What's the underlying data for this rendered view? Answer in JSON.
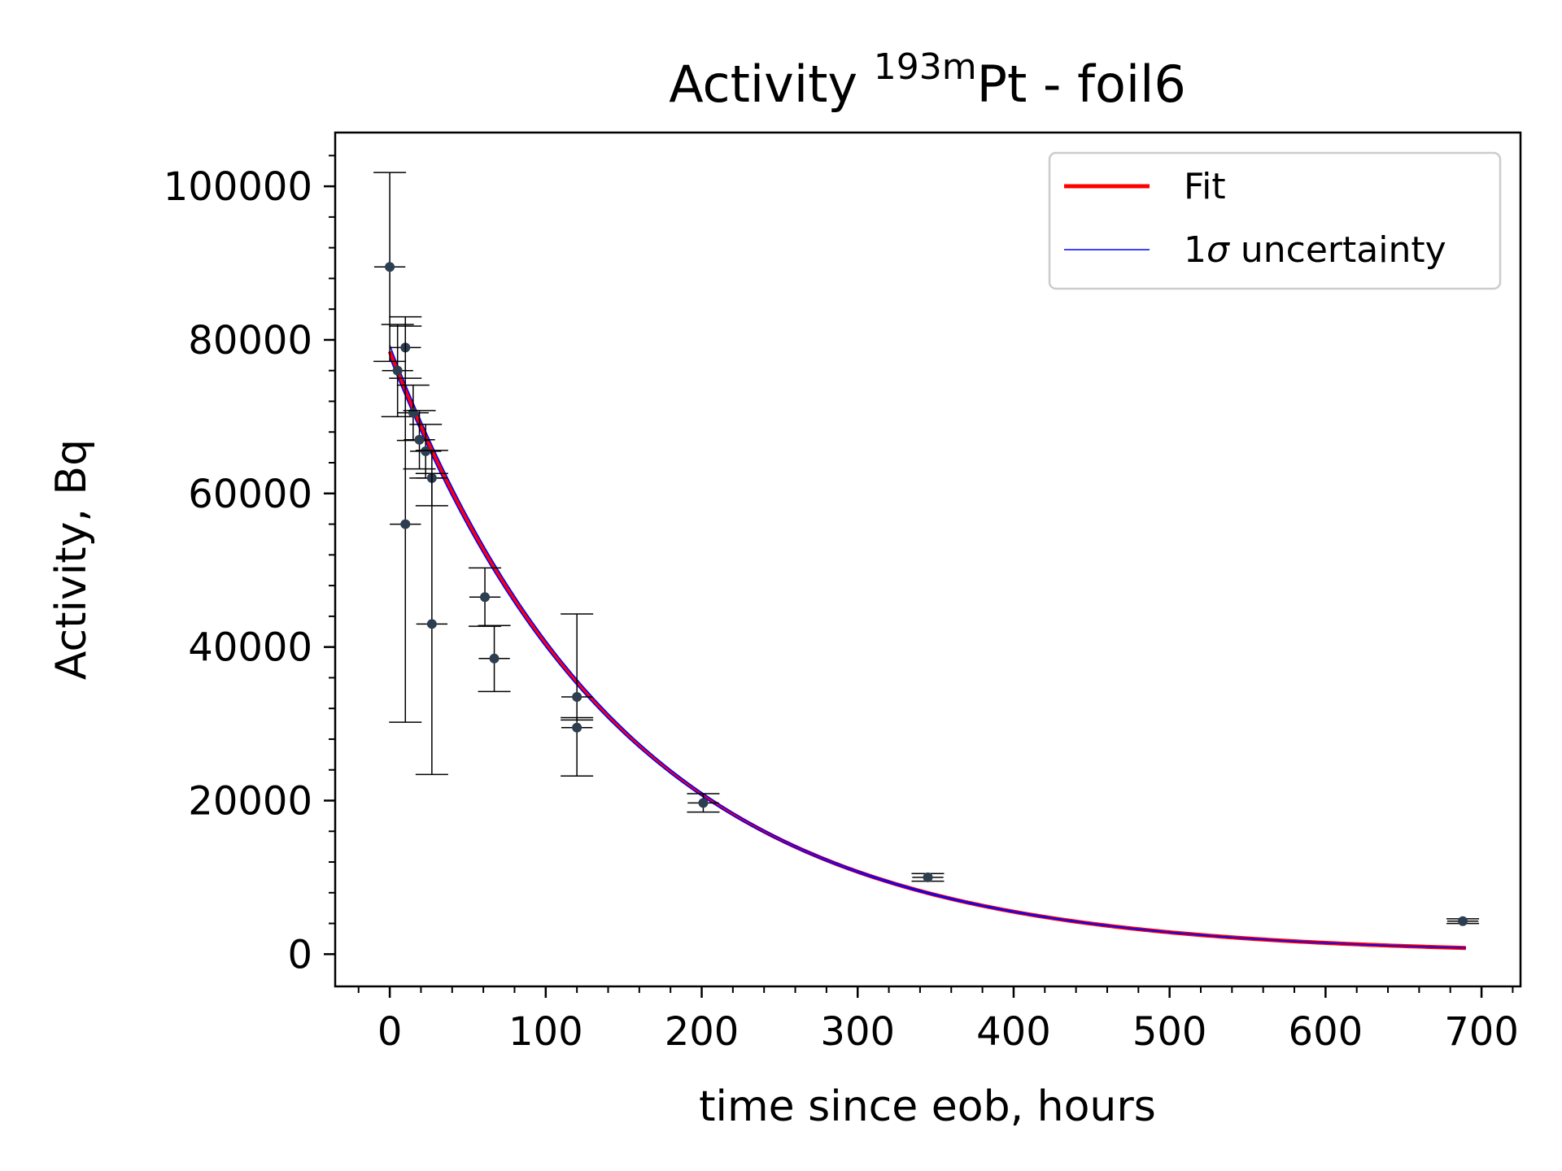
{
  "chart_data": {
    "type": "scatter",
    "title": {
      "prefix": "Activity ",
      "superscript": "193m",
      "suffix": "Pt - foil6"
    },
    "xlabel": "time since eob, hours",
    "ylabel": "Activity, Bq",
    "xlim": [
      -35,
      725
    ],
    "ylim": [
      -4200,
      107000
    ],
    "x_ticks": [
      0,
      100,
      200,
      300,
      400,
      500,
      600,
      700
    ],
    "y_ticks": [
      0,
      20000,
      40000,
      60000,
      80000,
      100000
    ],
    "x_tick_labels": [
      "0",
      "100",
      "200",
      "300",
      "400",
      "500",
      "600",
      "700"
    ],
    "y_tick_labels": [
      "0",
      "20000",
      "40000",
      "60000",
      "80000",
      "100000"
    ],
    "legend": {
      "position": "upper right",
      "entries": [
        {
          "label": "Fit",
          "color": "#ff0000"
        },
        {
          "label_prefix": "1",
          "label_symbol": "σ",
          "label_suffix": " uncertainty",
          "color": "#0000ff"
        }
      ]
    },
    "series": [
      {
        "name": "Fit",
        "kind": "curve",
        "model": "exponential_decay",
        "A0": 78500,
        "half_life_hours": 104.5,
        "x_range": [
          0,
          690
        ],
        "color": "#ff0000"
      },
      {
        "name": "1σ uncertainty",
        "kind": "band",
        "A0_upper": 79300,
        "A0_lower": 77700,
        "half_life_hours": 104.5,
        "x_range": [
          0,
          690
        ],
        "color": "#0000ff"
      },
      {
        "kind": "points",
        "color": "#2c3e50",
        "points": [
          {
            "x": 0,
            "y": 89500,
            "yerr_low": 12300,
            "yerr_high": 12300,
            "xerr": 10
          },
          {
            "x": 5,
            "y": 76000,
            "yerr_low": 6000,
            "yerr_high": 6000,
            "xerr": 10
          },
          {
            "x": 10,
            "y": 79000,
            "yerr_low": 4000,
            "yerr_high": 4000,
            "xerr": 10
          },
          {
            "x": 10,
            "y": 56000,
            "yerr_low": 25800,
            "yerr_high": 25800,
            "xerr": 10
          },
          {
            "x": 15,
            "y": 70500,
            "yerr_low": 3600,
            "yerr_high": 3600,
            "xerr": 10
          },
          {
            "x": 19,
            "y": 67000,
            "yerr_low": 3800,
            "yerr_high": 3800,
            "xerr": 10
          },
          {
            "x": 23,
            "y": 65500,
            "yerr_low": 3500,
            "yerr_high": 3500,
            "xerr": 10
          },
          {
            "x": 27,
            "y": 62000,
            "yerr_low": 3600,
            "yerr_high": 3600,
            "xerr": 10
          },
          {
            "x": 27,
            "y": 43000,
            "yerr_low": 19600,
            "yerr_high": 19600,
            "xerr": 10
          },
          {
            "x": 61,
            "y": 46500,
            "yerr_low": 3800,
            "yerr_high": 3800,
            "xerr": 10
          },
          {
            "x": 67,
            "y": 38500,
            "yerr_low": 4300,
            "yerr_high": 4300,
            "xerr": 10
          },
          {
            "x": 120,
            "y": 33500,
            "yerr_low": 3000,
            "yerr_high": 10800,
            "xerr": 10
          },
          {
            "x": 120,
            "y": 29500,
            "yerr_low": 6300,
            "yerr_high": 1300,
            "xerr": 10
          },
          {
            "x": 201,
            "y": 19700,
            "yerr_low": 1200,
            "yerr_high": 1200,
            "xerr": 10
          },
          {
            "x": 345,
            "y": 10000,
            "yerr_low": 500,
            "yerr_high": 500,
            "xerr": 10
          },
          {
            "x": 688,
            "y": 4300,
            "yerr_low": 300,
            "yerr_high": 300,
            "xerr": 10
          }
        ]
      }
    ]
  }
}
